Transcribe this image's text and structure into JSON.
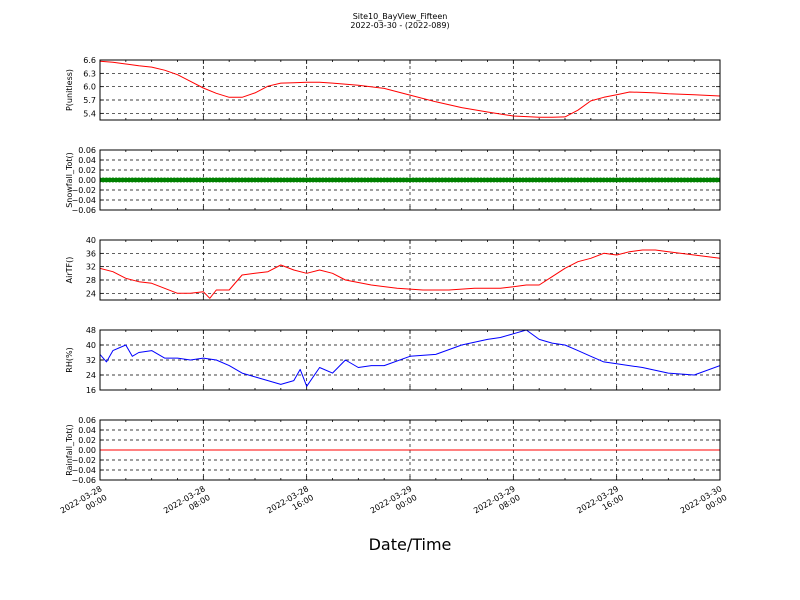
{
  "figure": {
    "title_line1": "Site10_BayView_Fifteen",
    "title_line2": "2022-03-30 - (2022-089)",
    "xlabel": "Date/Time"
  },
  "x_ticks": [
    {
      "line1": "2022-03-28",
      "line2": "00:00"
    },
    {
      "line1": "2022-03-28",
      "line2": "08:00"
    },
    {
      "line1": "2022-03-28",
      "line2": "16:00"
    },
    {
      "line1": "2022-03-29",
      "line2": "00:00"
    },
    {
      "line1": "2022-03-29",
      "line2": "08:00"
    },
    {
      "line1": "2022-03-29",
      "line2": "16:00"
    },
    {
      "line1": "2022-03-30",
      "line2": "00:00"
    }
  ],
  "chart_data": [
    {
      "type": "line",
      "ylabel": "P(unitless)",
      "ylim": [
        5.25,
        6.6
      ],
      "yticks": [
        "6.6",
        "6.3",
        "6.0",
        "5.7",
        "5.4"
      ],
      "ytick_values": [
        6.6,
        6.3,
        6.0,
        5.7,
        5.4
      ],
      "xlim": [
        "2022-03-28 00:00",
        "2022-03-30 00:00"
      ],
      "grid": true,
      "series": [
        {
          "color": "#ff0000",
          "x": [
            "2022-03-28 00:00",
            "2022-03-28 01:00",
            "2022-03-28 02:00",
            "2022-03-28 03:00",
            "2022-03-28 04:00",
            "2022-03-28 05:00",
            "2022-03-28 06:00",
            "2022-03-28 07:00",
            "2022-03-28 08:00",
            "2022-03-28 09:00",
            "2022-03-28 10:00",
            "2022-03-28 11:00",
            "2022-03-28 12:00",
            "2022-03-28 13:00",
            "2022-03-28 14:00",
            "2022-03-28 15:00",
            "2022-03-28 16:00",
            "2022-03-28 17:00",
            "2022-03-28 18:00",
            "2022-03-28 20:00",
            "2022-03-28 22:00",
            "2022-03-29 00:00",
            "2022-03-29 02:00",
            "2022-03-29 04:00",
            "2022-03-29 06:00",
            "2022-03-29 08:00",
            "2022-03-29 10:00",
            "2022-03-29 11:00",
            "2022-03-29 12:00",
            "2022-03-29 13:00",
            "2022-03-29 14:00",
            "2022-03-29 15:00",
            "2022-03-29 16:00",
            "2022-03-29 17:00",
            "2022-03-29 18:00",
            "2022-03-29 19:00",
            "2022-03-29 20:00",
            "2022-03-29 22:00",
            "2022-03-30 00:00"
          ],
          "y": [
            6.57,
            6.55,
            6.51,
            6.47,
            6.44,
            6.37,
            6.27,
            6.12,
            5.97,
            5.85,
            5.76,
            5.76,
            5.86,
            6.01,
            6.08,
            6.09,
            6.1,
            6.1,
            6.08,
            6.03,
            5.96,
            5.81,
            5.66,
            5.53,
            5.43,
            5.34,
            5.31,
            5.31,
            5.32,
            5.47,
            5.68,
            5.76,
            5.82,
            5.88,
            5.87,
            5.86,
            5.84,
            5.82,
            5.79
          ]
        }
      ]
    },
    {
      "type": "scatter",
      "ylabel": "Snowfall_Tot()",
      "ylim": [
        -0.06,
        0.06
      ],
      "yticks": [
        "0.06",
        "0.04",
        "0.02",
        "0.00",
        "−0.02",
        "−0.04",
        "−0.06"
      ],
      "ytick_values": [
        0.06,
        0.04,
        0.02,
        0.0,
        -0.02,
        -0.04,
        -0.06
      ],
      "xlim": [
        "2022-03-28 00:00",
        "2022-03-30 00:00"
      ],
      "grid": true,
      "series": [
        {
          "color": "#008000",
          "x": [
            "2022-03-28 00:00",
            "2022-03-30 00:00"
          ],
          "y": [
            0.0,
            0.0
          ],
          "interval_minutes": 15
        }
      ]
    },
    {
      "type": "line",
      "ylabel": "AirTF()",
      "ylim": [
        22,
        40
      ],
      "yticks": [
        "40",
        "36",
        "32",
        "28",
        "24"
      ],
      "ytick_values": [
        40,
        36,
        32,
        28,
        24
      ],
      "xlim": [
        "2022-03-28 00:00",
        "2022-03-30 00:00"
      ],
      "grid": true,
      "series": [
        {
          "color": "#ff0000",
          "x": [
            "2022-03-28 00:00",
            "2022-03-28 01:00",
            "2022-03-28 02:00",
            "2022-03-28 03:00",
            "2022-03-28 04:00",
            "2022-03-28 05:00",
            "2022-03-28 06:00",
            "2022-03-28 07:00",
            "2022-03-28 08:00",
            "2022-03-28 08:30",
            "2022-03-28 09:00",
            "2022-03-28 10:00",
            "2022-03-28 11:00",
            "2022-03-28 12:00",
            "2022-03-28 13:00",
            "2022-03-28 14:00",
            "2022-03-28 15:00",
            "2022-03-28 16:00",
            "2022-03-28 17:00",
            "2022-03-28 18:00",
            "2022-03-28 19:00",
            "2022-03-28 21:00",
            "2022-03-28 23:00",
            "2022-03-29 01:00",
            "2022-03-29 03:00",
            "2022-03-29 05:00",
            "2022-03-29 07:00",
            "2022-03-29 08:00",
            "2022-03-29 09:00",
            "2022-03-29 10:00",
            "2022-03-29 11:00",
            "2022-03-29 12:00",
            "2022-03-29 13:00",
            "2022-03-29 14:00",
            "2022-03-29 15:00",
            "2022-03-29 16:00",
            "2022-03-29 17:00",
            "2022-03-29 18:00",
            "2022-03-29 19:00",
            "2022-03-29 20:00",
            "2022-03-29 22:00",
            "2022-03-30 00:00"
          ],
          "y": [
            31.5,
            30.5,
            28.5,
            27.5,
            27,
            25.5,
            24,
            24,
            24.5,
            22.5,
            25,
            25,
            29.5,
            30,
            30.5,
            32.5,
            31,
            30,
            31,
            30,
            28,
            26.5,
            25.5,
            25,
            25,
            25.5,
            25.5,
            26,
            26.5,
            26.5,
            29,
            31.5,
            33.5,
            34.5,
            36,
            35.5,
            36.5,
            37,
            37,
            36.5,
            35.5,
            34.5
          ]
        }
      ]
    },
    {
      "type": "line",
      "ylabel": "RH(%)",
      "ylim": [
        16,
        48
      ],
      "yticks": [
        "48",
        "40",
        "32",
        "24",
        "16"
      ],
      "ytick_values": [
        48,
        40,
        32,
        24,
        16
      ],
      "xlim": [
        "2022-03-28 00:00",
        "2022-03-30 00:00"
      ],
      "grid": true,
      "series": [
        {
          "color": "#0000ff",
          "x": [
            "2022-03-28 00:00",
            "2022-03-28 00:30",
            "2022-03-28 01:00",
            "2022-03-28 02:00",
            "2022-03-28 02:30",
            "2022-03-28 03:00",
            "2022-03-28 04:00",
            "2022-03-28 05:00",
            "2022-03-28 06:00",
            "2022-03-28 07:00",
            "2022-03-28 08:00",
            "2022-03-28 09:00",
            "2022-03-28 10:00",
            "2022-03-28 11:00",
            "2022-03-28 12:00",
            "2022-03-28 13:00",
            "2022-03-28 14:00",
            "2022-03-28 15:00",
            "2022-03-28 15:30",
            "2022-03-28 16:00",
            "2022-03-28 17:00",
            "2022-03-28 18:00",
            "2022-03-28 19:00",
            "2022-03-28 20:00",
            "2022-03-28 21:00",
            "2022-03-28 22:00",
            "2022-03-29 00:00",
            "2022-03-29 02:00",
            "2022-03-29 04:00",
            "2022-03-29 06:00",
            "2022-03-29 07:00",
            "2022-03-29 08:00",
            "2022-03-29 09:00",
            "2022-03-29 10:00",
            "2022-03-29 11:00",
            "2022-03-29 12:00",
            "2022-03-29 13:00",
            "2022-03-29 14:00",
            "2022-03-29 15:00",
            "2022-03-29 16:00",
            "2022-03-29 18:00",
            "2022-03-29 20:00",
            "2022-03-29 22:00",
            "2022-03-30 00:00"
          ],
          "y": [
            35,
            31,
            37,
            40,
            34,
            36,
            37,
            33,
            33,
            32,
            33,
            32,
            29,
            25,
            23,
            21,
            19,
            21,
            27,
            18,
            28,
            25,
            32,
            28,
            29,
            29,
            34,
            35,
            40,
            43,
            44,
            46,
            48,
            43,
            41,
            40,
            37,
            34,
            31,
            30,
            28,
            25,
            24,
            29
          ]
        }
      ]
    },
    {
      "type": "line",
      "ylabel": "Rainfall_Tot()",
      "ylim": [
        -0.06,
        0.06
      ],
      "yticks": [
        "0.06",
        "0.04",
        "0.02",
        "0.00",
        "−0.02",
        "−0.04",
        "−0.06"
      ],
      "ytick_values": [
        0.06,
        0.04,
        0.02,
        0.0,
        -0.02,
        -0.04,
        -0.06
      ],
      "xlim": [
        "2022-03-28 00:00",
        "2022-03-30 00:00"
      ],
      "grid": true,
      "series": [
        {
          "color": "#ff0000",
          "x": [
            "2022-03-28 00:00",
            "2022-03-30 00:00"
          ],
          "y": [
            0.0,
            0.0
          ]
        }
      ]
    }
  ]
}
